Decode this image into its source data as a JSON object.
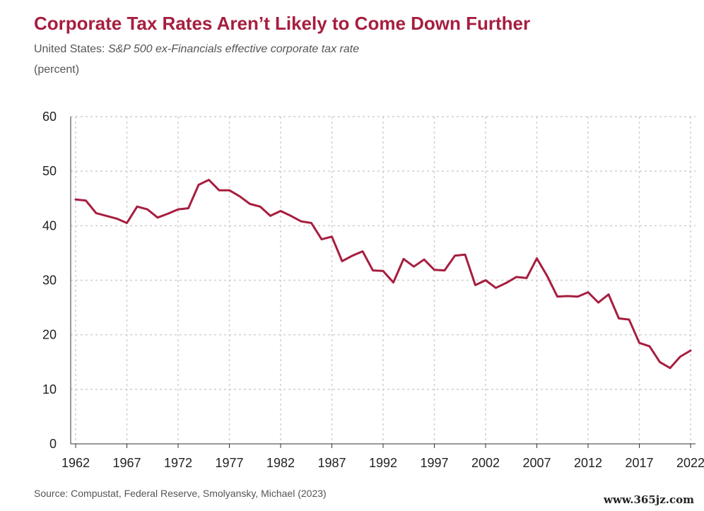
{
  "header": {
    "title": "Corporate Tax Rates Aren’t Likely to Come Down Further",
    "subtitle_prefix": "United States: ",
    "subtitle_italic": "S&P 500 ex-Financials effective corporate tax rate",
    "unit": "(percent)"
  },
  "footer": {
    "source": "Source: Compustat, Federal Reserve, Smolyansky, Michael (2023)",
    "watermark": "www.365jz.com"
  },
  "colors": {
    "title": "#a61e3f",
    "line": "#a61e3f",
    "grid": "#cfcfcf",
    "axis": "#333333"
  },
  "chart_data": {
    "type": "line",
    "title": "Corporate Tax Rates Aren’t Likely to Come Down Further",
    "xlabel": "",
    "ylabel": "(percent)",
    "xlim": [
      1962,
      2022
    ],
    "ylim": [
      0,
      60
    ],
    "y_ticks": [
      0,
      10,
      20,
      30,
      40,
      50,
      60
    ],
    "x_ticks": [
      1962,
      1967,
      1972,
      1977,
      1982,
      1987,
      1992,
      1997,
      2002,
      2007,
      2012,
      2017,
      2022
    ],
    "x_tick_labels": [
      "1962",
      "1967",
      "1972",
      "1977",
      "1982",
      "1987",
      "1992",
      "1997",
      "2002",
      "2007",
      "2012",
      "2017",
      "2022"
    ],
    "grid": true,
    "series": [
      {
        "name": "S&P 500 ex-Financials effective corporate tax rate",
        "x": [
          1962,
          1963,
          1964,
          1965,
          1966,
          1967,
          1968,
          1969,
          1970,
          1971,
          1972,
          1973,
          1974,
          1975,
          1976,
          1977,
          1978,
          1979,
          1980,
          1981,
          1982,
          1983,
          1984,
          1985,
          1986,
          1987,
          1988,
          1989,
          1990,
          1991,
          1992,
          1993,
          1994,
          1995,
          1996,
          1997,
          1998,
          1999,
          2000,
          2001,
          2002,
          2003,
          2004,
          2005,
          2006,
          2007,
          2008,
          2009,
          2010,
          2011,
          2012,
          2013,
          2014,
          2015,
          2016,
          2017,
          2018,
          2019,
          2020,
          2021,
          2022
        ],
        "values": [
          44.8,
          44.6,
          42.3,
          41.8,
          41.3,
          40.5,
          43.5,
          43.0,
          41.5,
          42.2,
          43.0,
          43.2,
          47.5,
          48.4,
          46.5,
          46.5,
          45.4,
          44.0,
          43.5,
          41.8,
          42.7,
          41.8,
          40.8,
          40.5,
          37.5,
          38.0,
          33.5,
          34.5,
          35.3,
          31.8,
          31.7,
          29.6,
          33.9,
          32.5,
          33.8,
          31.9,
          31.8,
          34.5,
          34.7,
          29.1,
          30.0,
          28.6,
          29.5,
          30.6,
          30.4,
          34.0,
          30.8,
          27.0,
          27.1,
          27.0,
          27.8,
          25.9,
          27.4,
          23.0,
          22.8,
          18.5,
          17.9,
          15.0,
          13.9,
          16.0,
          17.1
        ]
      }
    ]
  }
}
